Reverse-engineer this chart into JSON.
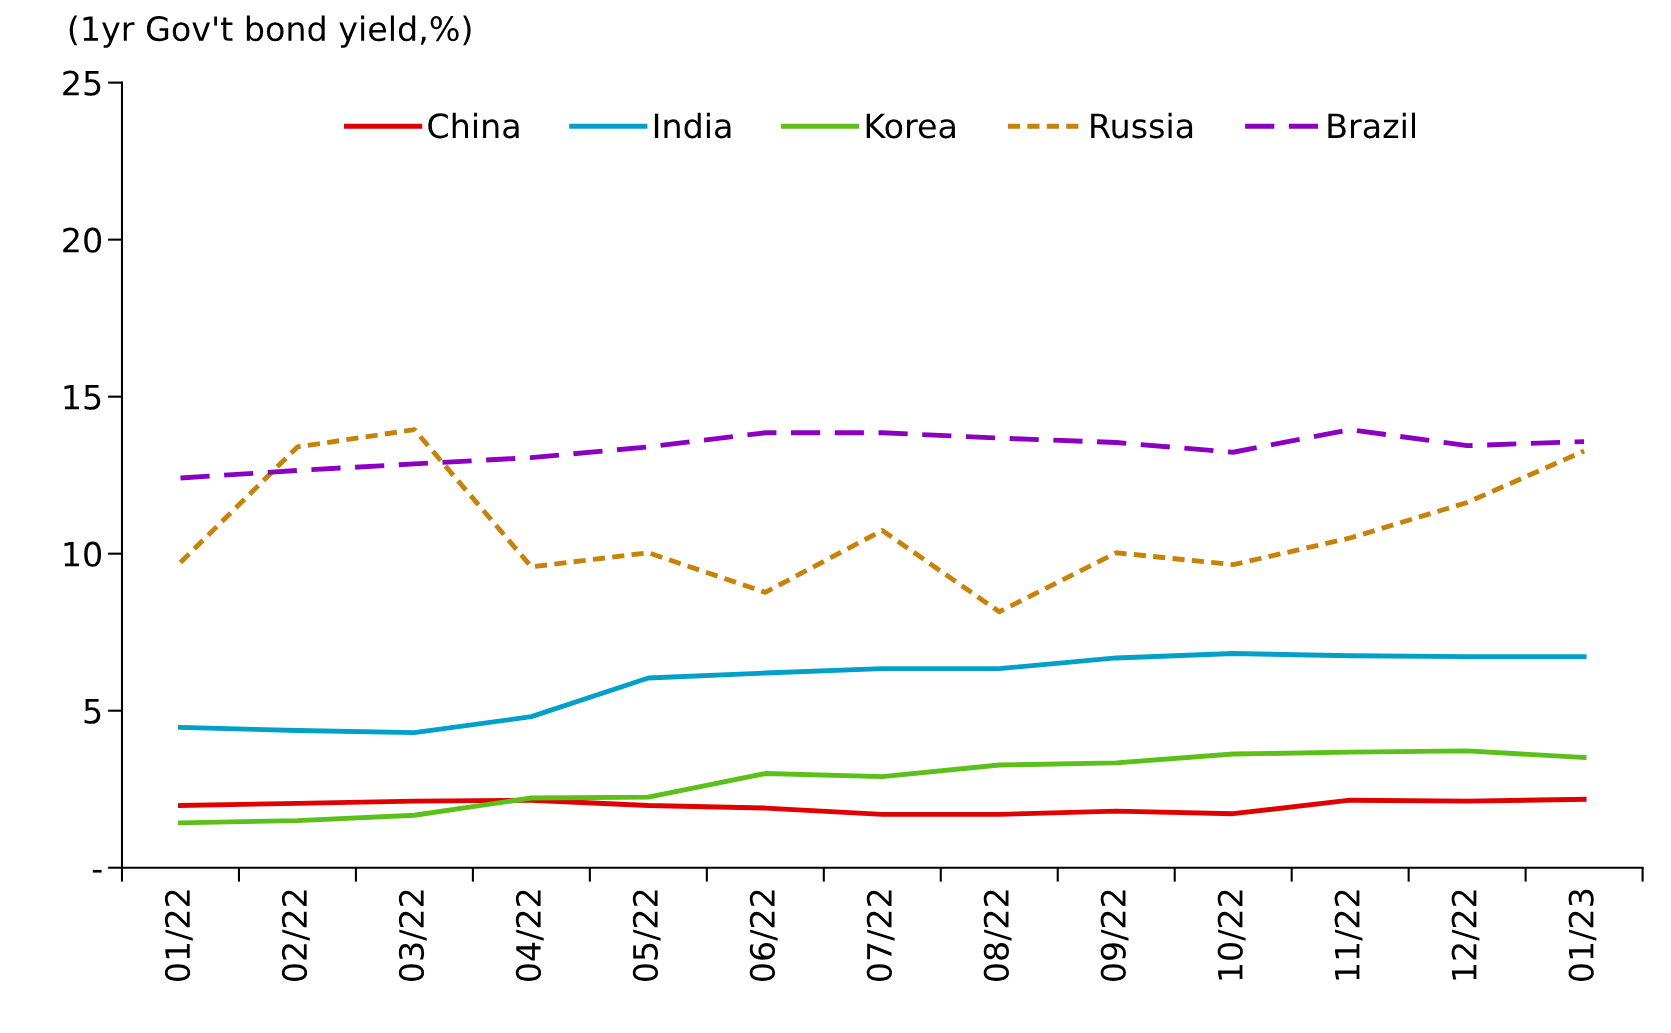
{
  "chart_data": {
    "type": "line",
    "ylabel": "(1yr Gov't bond yield,%)",
    "categories": [
      "01/22",
      "02/22",
      "03/22",
      "04/22",
      "05/22",
      "06/22",
      "07/22",
      "08/22",
      "09/22",
      "10/22",
      "11/22",
      "12/22",
      "01/23"
    ],
    "series": [
      {
        "name": "China",
        "color": "#e00000",
        "line_style": "solid",
        "values": [
          1.98,
          2.05,
          2.12,
          2.15,
          1.98,
          1.9,
          1.7,
          1.7,
          1.8,
          1.72,
          2.15,
          2.12,
          2.18
        ]
      },
      {
        "name": "India",
        "color": "#00a0c8",
        "line_style": "solid",
        "values": [
          4.47,
          4.37,
          4.3,
          4.81,
          6.04,
          6.2,
          6.34,
          6.34,
          6.68,
          6.82,
          6.75,
          6.72,
          6.72
        ]
      },
      {
        "name": "Korea",
        "color": "#5cbf1a",
        "line_style": "solid",
        "values": [
          1.43,
          1.5,
          1.67,
          2.22,
          2.25,
          3.0,
          2.9,
          3.27,
          3.34,
          3.62,
          3.68,
          3.72,
          3.51
        ]
      },
      {
        "name": "Russia",
        "color": "#c8820a",
        "line_style": "dashed",
        "values": [
          9.72,
          13.4,
          13.95,
          9.58,
          10.03,
          8.77,
          10.74,
          8.15,
          10.03,
          9.65,
          10.5,
          11.63,
          13.27
        ]
      },
      {
        "name": "Brazil",
        "color": "#8b00c0",
        "line_style": "dashed",
        "values": [
          12.41,
          12.65,
          12.86,
          13.06,
          13.4,
          13.85,
          13.85,
          13.68,
          13.54,
          13.23,
          13.95,
          13.44,
          13.57
        ]
      }
    ],
    "ylim": [
      0,
      25
    ],
    "yticks": [
      {
        "value": 0,
        "label": "-"
      },
      5,
      10,
      15,
      20,
      25
    ],
    "grid": false,
    "legend": "top",
    "marker": "none"
  }
}
